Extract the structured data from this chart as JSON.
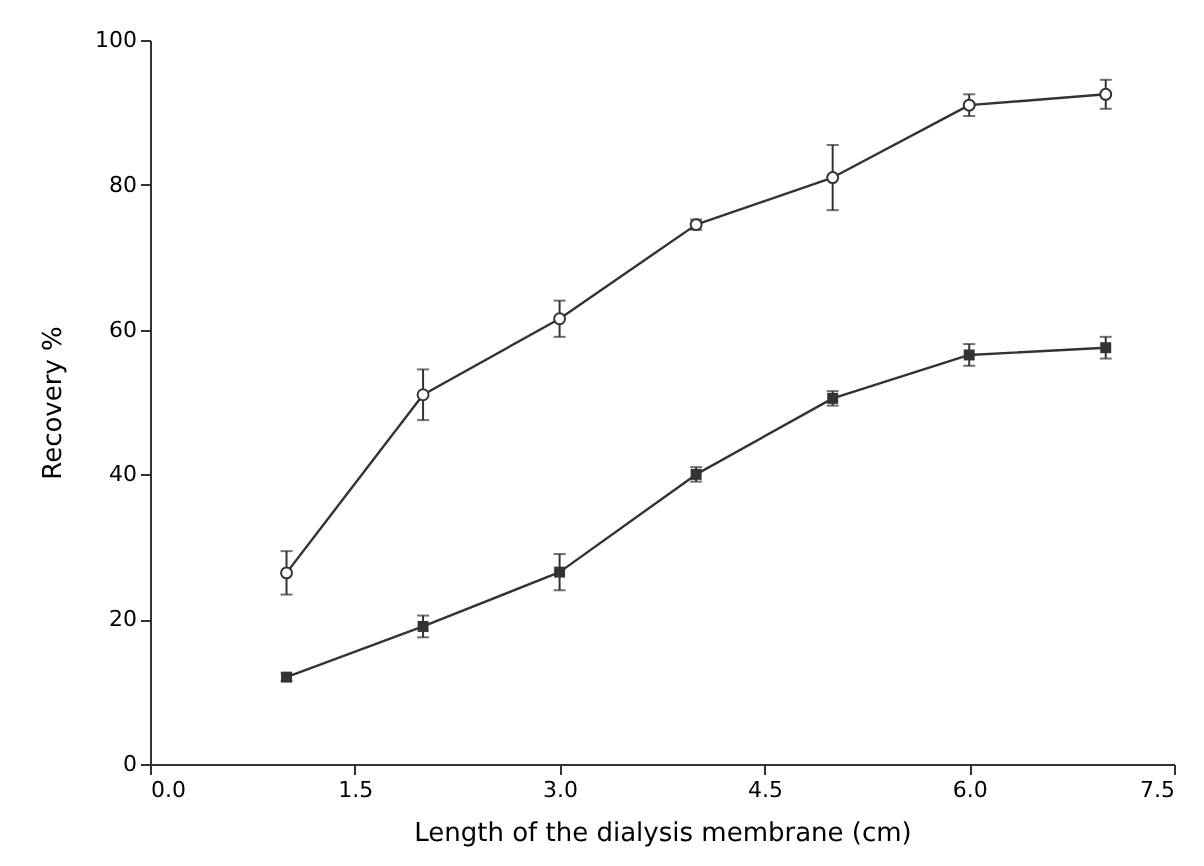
{
  "chart_data": {
    "type": "line",
    "xlabel": "Length of the dialysis membrane (cm)",
    "ylabel": "Recovery %",
    "xlim": [
      0,
      7.5
    ],
    "xticks": [
      {
        "value": 0,
        "label": "0.0"
      },
      {
        "value": 1.5,
        "label": "1.5"
      },
      {
        "value": 3,
        "label": "3.0"
      },
      {
        "value": 4.5,
        "label": "4.5"
      },
      {
        "value": 6,
        "label": "6.0"
      },
      {
        "value": 7.5,
        "label": "7.5"
      }
    ],
    "ylim": [
      0,
      100
    ],
    "yticks": [
      0,
      20,
      40,
      60,
      80,
      100
    ],
    "grid": false,
    "line_style": "solid",
    "x": [
      1,
      2,
      3,
      4,
      5,
      6,
      7
    ],
    "series": [
      {
        "color": "#333333",
        "marker": "circle",
        "values": [
          26.4,
          51,
          61.5,
          74.5,
          81,
          91,
          92.5
        ],
        "errors": [
          3,
          3.5,
          2.5,
          0.7,
          4.5,
          1.5,
          2
        ]
      },
      {
        "color": "#333333",
        "marker": "square",
        "values": [
          12,
          19,
          26.5,
          40,
          50.5,
          56.5,
          57.5
        ],
        "errors": [
          0.5,
          1.5,
          2.5,
          1,
          1,
          1.5,
          1.5
        ]
      }
    ]
  }
}
